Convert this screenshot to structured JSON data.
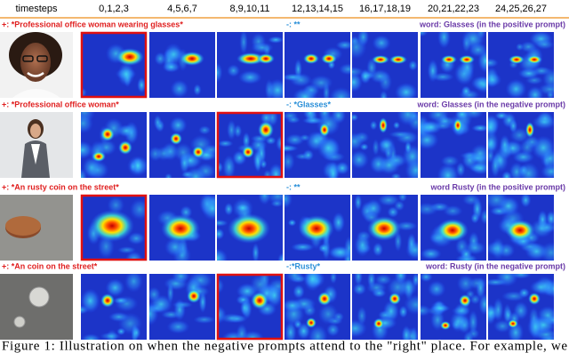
{
  "header": {
    "timesteps_label": "timesteps",
    "columns": [
      "0,1,2,3",
      "4,5,6,7",
      "8,9,10,11",
      "12,13,14,15",
      "16,17,18,19",
      "20,21,22,23",
      "24,25,26,27"
    ]
  },
  "rows": [
    {
      "positive": "+: *Professional office woman wearing glasses*",
      "negative": "-: **",
      "word": "word: Glasses (in the positive prompt)"
    },
    {
      "positive": "+: *Professional office woman*",
      "negative": "-: *Glasses*",
      "word": "word: Glasses (in the negative prompt)"
    },
    {
      "positive": "+: *An rusty coin on the street*",
      "negative": "-: **",
      "word": "word Rusty (in the positive prompt)"
    },
    {
      "positive": "+: *An coin on the street*",
      "negative": "-:*Rusty*",
      "word": "word: Rusty (in the negative prompt)"
    }
  ],
  "caption": "Figure 1: Illustration on when the negative prompts attend to the \"right\" place. For example, we"
}
